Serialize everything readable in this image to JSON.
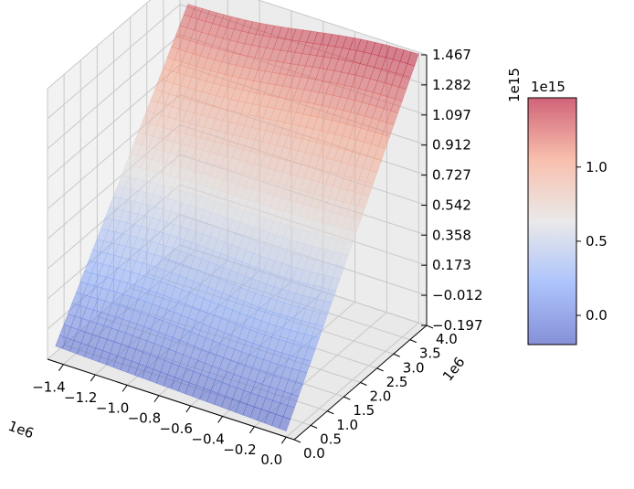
{
  "chart_data": {
    "type": "surface3d",
    "colormap": "coolwarm",
    "surface_alpha": 0.5,
    "x": {
      "ticks": [
        -1.4,
        -1.2,
        -1.0,
        -0.8,
        -0.6,
        -0.4,
        -0.2,
        0.0
      ],
      "tick_labels": [
        "−1.4",
        "−1.2",
        "−1.0",
        "−0.8",
        "−0.6",
        "−0.4",
        "−0.2",
        "0.0"
      ],
      "offset_label": "1e6",
      "range": [
        -1.5,
        0.05
      ]
    },
    "y": {
      "ticks": [
        0.0,
        0.5,
        1.0,
        1.5,
        2.0,
        2.5,
        3.0,
        3.5,
        4.0
      ],
      "tick_labels": [
        "0.0",
        "0.5",
        "1.0",
        "1.5",
        "2.0",
        "2.5",
        "3.0",
        "3.5",
        "4.0"
      ],
      "offset_label": "1e6",
      "range": [
        0.0,
        4.0
      ]
    },
    "z": {
      "ticks": [
        -0.197,
        -0.012,
        0.173,
        0.358,
        0.542,
        0.727,
        0.912,
        1.097,
        1.282,
        1.467
      ],
      "tick_labels": [
        "−0.197",
        "−0.012",
        "0.173",
        "0.358",
        "0.542",
        "0.727",
        "0.912",
        "1.097",
        "1.282",
        "1.467"
      ],
      "offset_label": "1e15",
      "range": [
        -0.197,
        1.467
      ]
    },
    "surface_corners": {
      "x_min_y_min": -0.1,
      "x_max_y_min": -0.16,
      "x_min_y_max": 1.3,
      "x_max_y_max": 1.45
    },
    "colorbar": {
      "ticks": [
        0.0,
        0.5,
        1.0
      ],
      "tick_labels": [
        "0.0",
        "0.5",
        "1.0"
      ],
      "offset_label": "1e15",
      "range": [
        -0.197,
        1.467
      ]
    },
    "grid": true
  }
}
